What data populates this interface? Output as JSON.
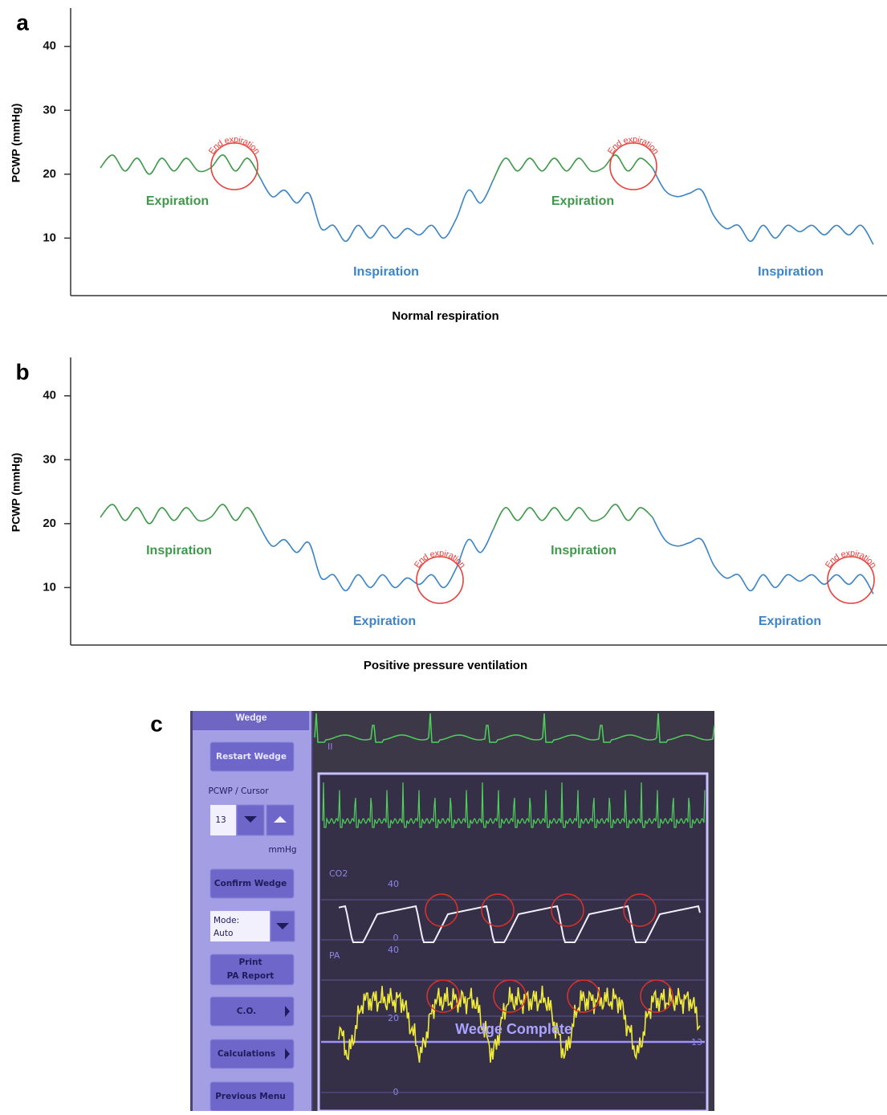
{
  "chart_data": [
    {
      "type": "line",
      "panel": "a",
      "xlabel": "Normal respiration",
      "ylabel": "PCWP (mmHg)",
      "ylim": [
        1,
        46
      ],
      "yticks": [
        10,
        20,
        30,
        40
      ],
      "series": [
        {
          "color": "#3e9a4a",
          "values": [
            21,
            23,
            20.5,
            22.5,
            20,
            22.5,
            20.5,
            22.5,
            20.5,
            21,
            23,
            20.5,
            22.5,
            19.5,
            null,
            null,
            null,
            null,
            null,
            null,
            null,
            null,
            null,
            null,
            null,
            null,
            null,
            null,
            null,
            null,
            null,
            null,
            19,
            22.5,
            20.5,
            22.5,
            20.5,
            22.5,
            20.5,
            22.5,
            20.5,
            21,
            23,
            20.5,
            22.5,
            21,
            null,
            null,
            null,
            null,
            null,
            null,
            null,
            null,
            null,
            null,
            null,
            null,
            null,
            null,
            null,
            null,
            null,
            null
          ]
        },
        {
          "color": "#3b84c6",
          "values": [
            null,
            null,
            null,
            null,
            null,
            null,
            null,
            null,
            null,
            null,
            null,
            null,
            null,
            19.5,
            16.5,
            17.5,
            15.5,
            17,
            11.5,
            12,
            9.5,
            12,
            10,
            12,
            10,
            11.5,
            10.5,
            12,
            10,
            13,
            17.5,
            15.5,
            19,
            null,
            null,
            null,
            null,
            null,
            null,
            null,
            null,
            null,
            null,
            null,
            null,
            21,
            17.5,
            16.5,
            17,
            17.5,
            13.5,
            11.5,
            12,
            9.5,
            12,
            10,
            12,
            11,
            12,
            10.5,
            12,
            10.5,
            12,
            9
          ]
        }
      ],
      "annotation_color": "#e8403c",
      "annotations": [
        "Expiration",
        "End expiration",
        "Inspiration",
        "Expiration",
        "End expiration",
        "Inspiration"
      ]
    },
    {
      "type": "line",
      "panel": "b",
      "xlabel": "Positive pressure ventilation",
      "ylabel": "PCWP (mmHg)",
      "ylim": [
        1,
        46
      ],
      "yticks": [
        10,
        20,
        30,
        40
      ],
      "series": [
        {
          "color": "#3e9a4a",
          "values": [
            21,
            23,
            20.5,
            22.5,
            20,
            22.5,
            20.5,
            22.5,
            20.5,
            21,
            23,
            20.5,
            22.5,
            19.5,
            null,
            null,
            null,
            null,
            null,
            null,
            null,
            null,
            null,
            null,
            null,
            null,
            null,
            null,
            null,
            null,
            null,
            null,
            19,
            22.5,
            20.5,
            22.5,
            20.5,
            22.5,
            20.5,
            22.5,
            20.5,
            21,
            23,
            20.5,
            22.5,
            21,
            null,
            null,
            null,
            null,
            null,
            null,
            null,
            null,
            null,
            null,
            null,
            null,
            null,
            null,
            null,
            null,
            null,
            null
          ]
        },
        {
          "color": "#3b84c6",
          "values": [
            null,
            null,
            null,
            null,
            null,
            null,
            null,
            null,
            null,
            null,
            null,
            null,
            null,
            19.5,
            16.5,
            17.5,
            15.5,
            17,
            11.5,
            12,
            9.5,
            12,
            10,
            12,
            10,
            11.5,
            10.5,
            12,
            10,
            13,
            17.5,
            15.5,
            19,
            null,
            null,
            null,
            null,
            null,
            null,
            null,
            null,
            null,
            null,
            null,
            null,
            21,
            17.5,
            16.5,
            17,
            17.5,
            13.5,
            11.5,
            12,
            9.5,
            12,
            10,
            12,
            11,
            12,
            10.5,
            12,
            10.5,
            12,
            9
          ]
        }
      ],
      "annotation_color": "#e8403c",
      "annotations": [
        "Inspiration",
        "Expiration",
        "End expiration",
        "Inspiration",
        "Expiration",
        "End expiration"
      ]
    }
  ],
  "monitor": {
    "panel": "c",
    "title": "Wedge",
    "restart": "Restart Wedge",
    "cursor_label": "PCWP / Cursor",
    "cursor_value": "13",
    "unit": "mmHg",
    "confirm": "Confirm Wedge",
    "mode": [
      "Mode:",
      "Auto"
    ],
    "print": [
      "Print",
      "PA Report"
    ],
    "co": "C.O.",
    "calculations": "Calculations",
    "previous": "Previous Menu",
    "screen": {
      "ecg": "II",
      "co2": "CO2",
      "co2_scale": [
        "40",
        "0"
      ],
      "pa": "PA",
      "pa_scale": [
        "40",
        "20",
        "0"
      ],
      "status": "Wedge Complete",
      "cursor": "13"
    }
  }
}
